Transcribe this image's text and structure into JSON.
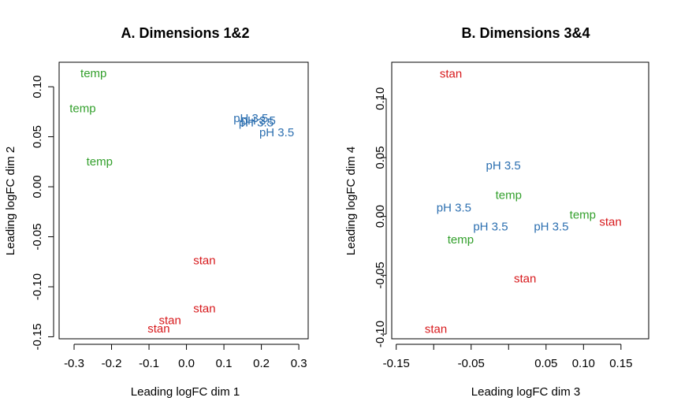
{
  "colors": {
    "stan": "#D7191C",
    "temp": "#33A02C",
    "pH 3.5": "#2C6FB0"
  },
  "chart_data": [
    {
      "type": "scatter",
      "title": "A. Dimensions 1&2",
      "xlabel": "Leading logFC dim 1",
      "ylabel": "Leading logFC dim 2",
      "xlim": [
        -0.34,
        0.325
      ],
      "ylim": [
        -0.152,
        0.1245
      ],
      "xticks": [
        -0.3,
        -0.2,
        -0.1,
        0.0,
        0.1,
        0.2,
        0.3
      ],
      "xtick_labels": [
        "-0.3",
        "-0.2",
        "-0.1",
        "0.0",
        "0.1",
        "0.2",
        "0.3"
      ],
      "yticks": [
        -0.15,
        -0.1,
        -0.05,
        0.0,
        0.05,
        0.1
      ],
      "ytick_labels": [
        "-0.15",
        "-0.10",
        "-0.05",
        "0.00",
        "0.05",
        "0.10"
      ],
      "points": [
        {
          "label": "temp",
          "x": -0.248,
          "y": 0.113
        },
        {
          "label": "temp",
          "x": -0.277,
          "y": 0.078
        },
        {
          "label": "temp",
          "x": -0.232,
          "y": 0.025
        },
        {
          "label": "pH 3.5",
          "x": 0.172,
          "y": 0.068
        },
        {
          "label": "pH 3.5",
          "x": 0.192,
          "y": 0.066
        },
        {
          "label": "pH 3.5",
          "x": 0.186,
          "y": 0.064
        },
        {
          "label": "pH 3.5",
          "x": 0.241,
          "y": 0.054
        },
        {
          "label": "stan",
          "x": 0.048,
          "y": -0.074
        },
        {
          "label": "stan",
          "x": 0.048,
          "y": -0.122
        },
        {
          "label": "stan",
          "x": -0.044,
          "y": -0.134
        },
        {
          "label": "stan",
          "x": -0.074,
          "y": -0.142
        }
      ]
    },
    {
      "type": "scatter",
      "title": "B. Dimensions 3&4",
      "xlabel": "Leading logFC dim 3",
      "ylabel": "Leading logFC dim 4",
      "xlim": [
        -0.156,
        0.187
      ],
      "ylim": [
        -0.104,
        0.131
      ],
      "xticks": [
        -0.15,
        -0.05,
        0.05,
        0.1,
        0.15
      ],
      "xtick_labels": [
        "-0.15",
        "-0.05",
        "0.05",
        "0.10",
        "0.15"
      ],
      "xtick_marks": [
        -0.15,
        -0.1,
        -0.05,
        0.0,
        0.05,
        0.1,
        0.15
      ],
      "yticks": [
        -0.1,
        -0.05,
        0.0,
        0.05,
        0.1
      ],
      "ytick_labels": [
        "-0.10",
        "-0.05",
        "0.00",
        "0.05",
        "0.10"
      ],
      "points": [
        {
          "label": "stan",
          "x": -0.077,
          "y": 0.121
        },
        {
          "label": "pH 3.5",
          "x": -0.007,
          "y": 0.043
        },
        {
          "label": "temp",
          "x": 0.0,
          "y": 0.018
        },
        {
          "label": "pH 3.5",
          "x": -0.073,
          "y": 0.007
        },
        {
          "label": "temp",
          "x": 0.099,
          "y": 0.001
        },
        {
          "label": "stan",
          "x": 0.136,
          "y": -0.005
        },
        {
          "label": "pH 3.5",
          "x": -0.024,
          "y": -0.009
        },
        {
          "label": "pH 3.5",
          "x": 0.057,
          "y": -0.009
        },
        {
          "label": "temp",
          "x": -0.064,
          "y": -0.02
        },
        {
          "label": "stan",
          "x": 0.022,
          "y": -0.053
        },
        {
          "label": "stan",
          "x": -0.097,
          "y": -0.096
        }
      ]
    }
  ]
}
